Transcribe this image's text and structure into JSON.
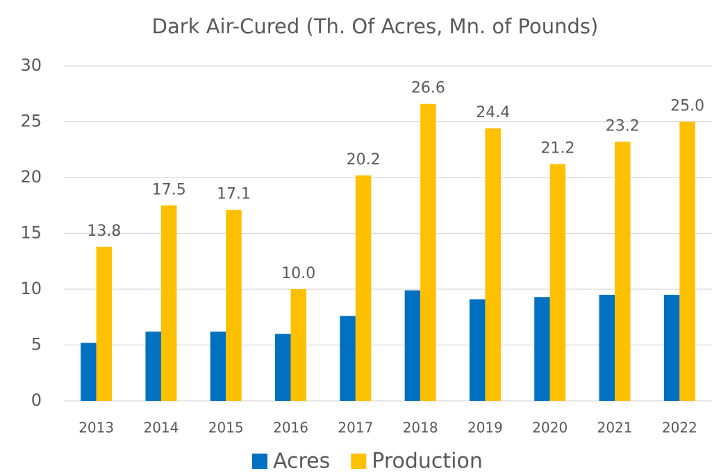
{
  "chart_data": {
    "type": "bar",
    "title": "Dark Air-Cured (Th. Of Acres, Mn. of Pounds)",
    "categories": [
      "2013",
      "2014",
      "2015",
      "2016",
      "2017",
      "2018",
      "2019",
      "2020",
      "2021",
      "2022"
    ],
    "series": [
      {
        "name": "Acres",
        "color": "#0070c0",
        "values": [
          5.2,
          6.2,
          6.2,
          6.0,
          7.6,
          9.9,
          9.1,
          9.3,
          9.5,
          9.5
        ]
      },
      {
        "name": "Production",
        "color": "#ffc000",
        "values": [
          13.8,
          17.5,
          17.1,
          10.0,
          20.2,
          26.6,
          24.4,
          21.2,
          23.2,
          25.0
        ],
        "value_labels": [
          "13.8",
          "17.5",
          "17.1",
          "10.0",
          "20.2",
          "26.6",
          "24.4",
          "21.2",
          "23.2",
          "25.0"
        ]
      }
    ],
    "ylim": [
      0,
      30
    ],
    "yticks": [
      0,
      5,
      10,
      15,
      20,
      25,
      30
    ],
    "grid": true,
    "legend": "bottom"
  }
}
